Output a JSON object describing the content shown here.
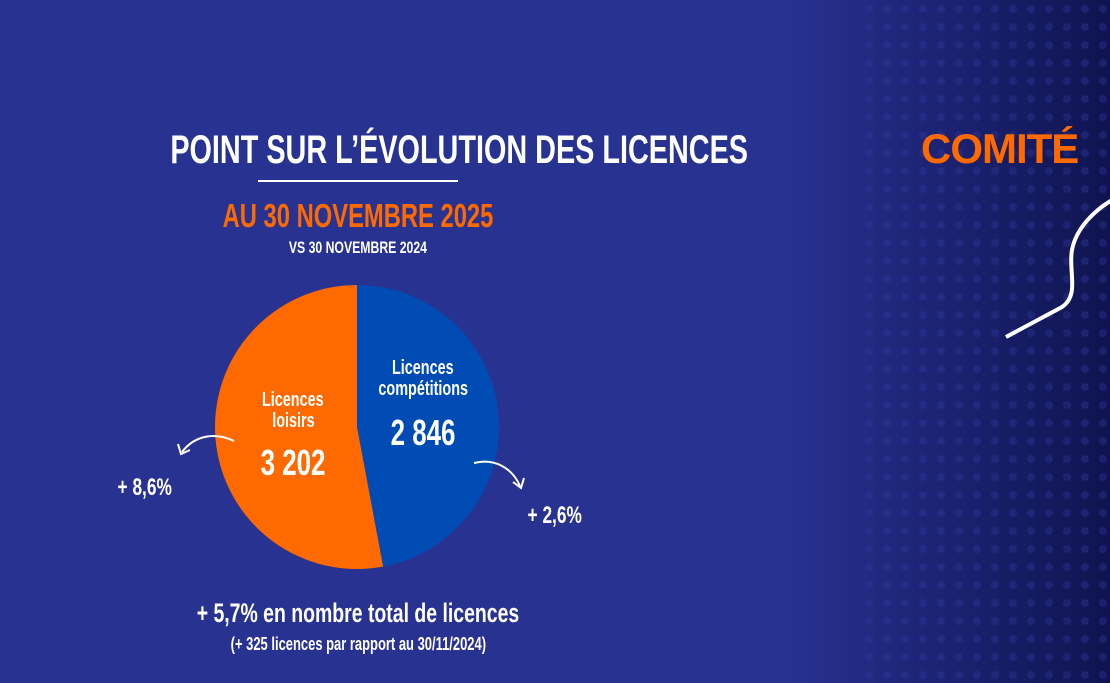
{
  "chart_data": {
    "type": "pie",
    "title": "POINT SUR L’ÉVOLUTION DES LICENCES",
    "subtitle": "AU 30 NOVEMBRE 2025",
    "comparison": "VS 30 NOVEMBRE 2024",
    "slices": [
      {
        "label": "Licences compétitions",
        "label_lines": [
          "Licences",
          "compétitions"
        ],
        "value": 2846,
        "value_label": "2 846",
        "change": "+ 2,6%",
        "color": "#004cb4"
      },
      {
        "label": "Licences loisirs",
        "label_lines": [
          "Licences",
          "loisirs"
        ],
        "value": 3202,
        "value_label": "3 202",
        "change": "+ 8,6%",
        "color": "#ff6a00"
      }
    ],
    "total_note": "+ 5,7% en nombre total de licences",
    "total_subnote": "(+ 325 licences par rapport au 30/11/2024)"
  },
  "brand": {
    "text": "COMITÉ",
    "color": "#ff6a00"
  },
  "background": "#283291"
}
